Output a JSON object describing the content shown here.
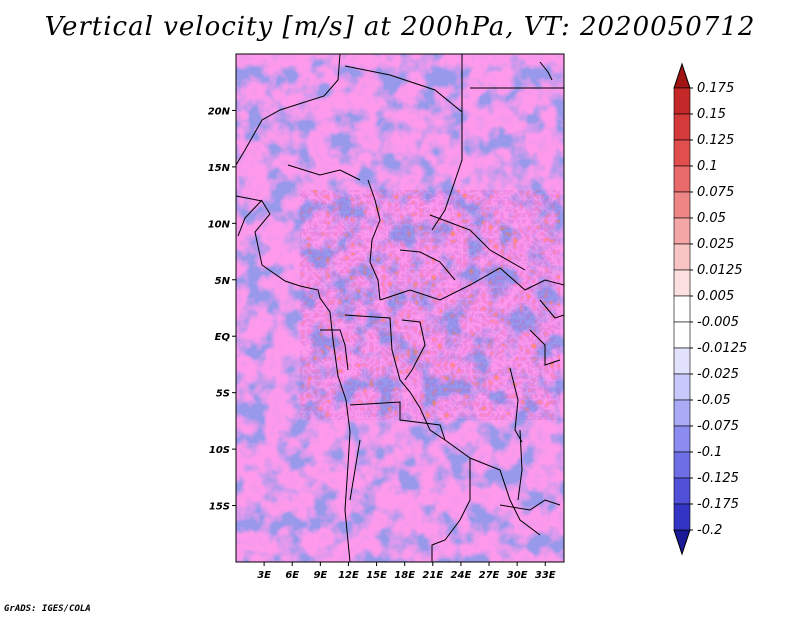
{
  "title": "Vertical velocity [m/s] at 200hPa, VT: 2020050712",
  "credit": "GrADS: IGES/COLA",
  "map": {
    "lon_range": [
      0,
      35
    ],
    "lat_range": [
      -20,
      25
    ],
    "x_ticks": [
      {
        "lon": 3,
        "label": "3E"
      },
      {
        "lon": 6,
        "label": "6E"
      },
      {
        "lon": 9,
        "label": "9E"
      },
      {
        "lon": 12,
        "label": "12E"
      },
      {
        "lon": 15,
        "label": "15E"
      },
      {
        "lon": 18,
        "label": "18E"
      },
      {
        "lon": 21,
        "label": "21E"
      },
      {
        "lon": 24,
        "label": "24E"
      },
      {
        "lon": 27,
        "label": "27E"
      },
      {
        "lon": 30,
        "label": "30E"
      },
      {
        "lon": 33,
        "label": "33E"
      }
    ],
    "y_ticks": [
      {
        "lat": 20,
        "label": "20N"
      },
      {
        "lat": 15,
        "label": "15N"
      },
      {
        "lat": 10,
        "label": "10N"
      },
      {
        "lat": 5,
        "label": "5N"
      },
      {
        "lat": 0,
        "label": "EQ"
      },
      {
        "lat": -5,
        "label": "5S"
      },
      {
        "lat": -10,
        "label": "10S"
      },
      {
        "lat": -15,
        "label": "15S"
      }
    ]
  },
  "colorbar": {
    "levels": [
      {
        "label": "0.175",
        "color": "#b41e1e"
      },
      {
        "label": "0.15",
        "color": "#c42828"
      },
      {
        "label": "0.125",
        "color": "#d43a3a"
      },
      {
        "label": "0.1",
        "color": "#e04e4e"
      },
      {
        "label": "0.075",
        "color": "#e86a6a"
      },
      {
        "label": "0.05",
        "color": "#ee8686"
      },
      {
        "label": "0.025",
        "color": "#f4a6a6"
      },
      {
        "label": "0.0125",
        "color": "#f8c4c4"
      },
      {
        "label": "0.005",
        "color": "#fce0e0"
      },
      {
        "label": "-0.005",
        "color": "#ffffff"
      },
      {
        "label": "-0.0125",
        "color": "#e2e2fc"
      },
      {
        "label": "-0.025",
        "color": "#c8c8fa"
      },
      {
        "label": "-0.05",
        "color": "#aaaaf6"
      },
      {
        "label": "-0.075",
        "color": "#8c8cf0"
      },
      {
        "label": "-0.1",
        "color": "#6e6ee6"
      },
      {
        "label": "-0.125",
        "color": "#5050d8"
      },
      {
        "label": "-0.175",
        "color": "#3434c4"
      },
      {
        "label": "-0.2",
        "color": "#2222aa"
      }
    ],
    "top_arrow_color": "#a01414",
    "bottom_arrow_color": "#1a1a96"
  }
}
